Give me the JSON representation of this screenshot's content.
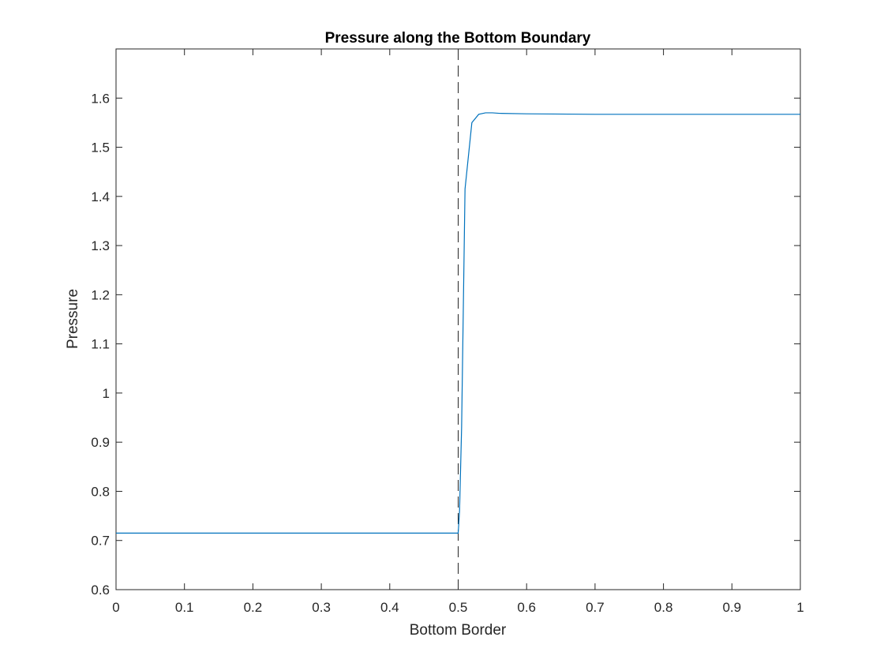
{
  "chart_data": {
    "type": "line",
    "title": "Pressure along the Bottom Boundary",
    "xlabel": "Bottom Border",
    "ylabel": "Pressure",
    "xlim": [
      0,
      1
    ],
    "ylim": [
      0.6,
      1.7
    ],
    "grid": false,
    "x_ticks": [
      "0",
      "0.1",
      "0.2",
      "0.3",
      "0.4",
      "0.5",
      "0.6",
      "0.7",
      "0.8",
      "0.9",
      "1"
    ],
    "y_ticks": [
      "0.6",
      "0.7",
      "0.8",
      "0.9",
      "1",
      "1.1",
      "1.2",
      "1.3",
      "1.4",
      "1.5",
      "1.6"
    ],
    "series": [
      {
        "color": "#0072BD",
        "x": [
          0,
          0.1,
          0.2,
          0.3,
          0.4,
          0.5,
          0.502,
          0.505,
          0.51,
          0.52,
          0.53,
          0.54,
          0.55,
          0.56,
          0.6,
          0.7,
          0.8,
          0.9,
          1.0
        ],
        "y": [
          0.715,
          0.715,
          0.715,
          0.715,
          0.715,
          0.715,
          0.76,
          0.93,
          1.415,
          1.55,
          1.567,
          1.57,
          1.57,
          1.569,
          1.568,
          1.567,
          1.567,
          1.567,
          1.567
        ]
      }
    ],
    "reference_line": {
      "x": 0.5,
      "style": "dashed",
      "color": "#262626"
    }
  }
}
